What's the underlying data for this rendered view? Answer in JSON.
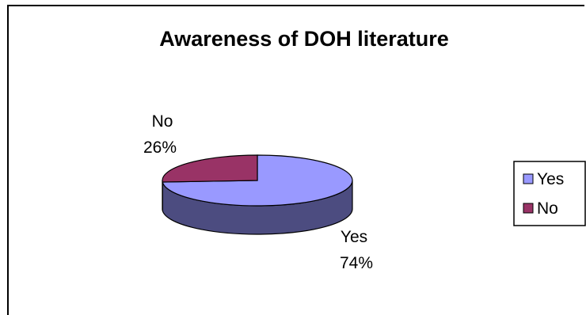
{
  "chart_data": {
    "type": "pie",
    "title": "Awareness of DOH literature",
    "categories": [
      "Yes",
      "No"
    ],
    "values": [
      74,
      26
    ],
    "labels": [
      {
        "name": "Yes",
        "percent": "74%"
      },
      {
        "name": "No",
        "percent": "26%"
      }
    ],
    "colors": {
      "Yes": "#9999FF",
      "No": "#993366",
      "Yes_side": "#4C4C80",
      "No_side": "#4C1933"
    },
    "legend": {
      "placement": "right",
      "entries": [
        "Yes",
        "No"
      ]
    },
    "three_d": true
  }
}
